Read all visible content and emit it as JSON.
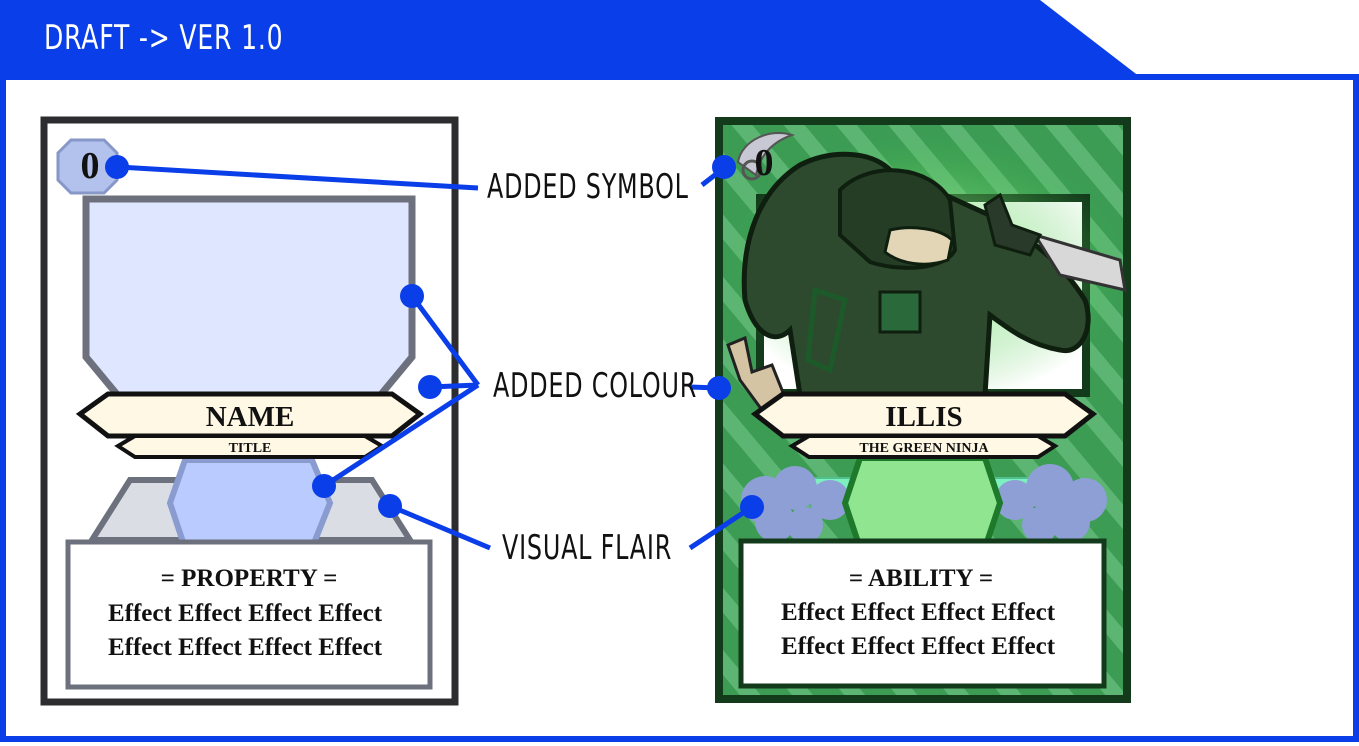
{
  "header": {
    "title": "DRAFT -> VER 1.0",
    "color": "#0a3ee8"
  },
  "callouts": {
    "symbol": "ADDED SYMBOL",
    "colour": "ADDED COLOUR",
    "flair": "VISUAL FLAIR"
  },
  "draft_card": {
    "cost": "0",
    "name": "NAME",
    "title": "TITLE",
    "text_heading": "= PROPERTY =",
    "effect_line_1": "Effect Effect Effect Effect",
    "effect_line_2": "Effect Effect Effect Effect"
  },
  "final_card": {
    "cost": "0",
    "name": "ILLIS",
    "title": "THE GREEN NINJA",
    "text_heading": "= ABILITY =",
    "effect_line_1": "Effect Effect Effect Effect",
    "effect_line_2": "Effect Effect Effect Effect"
  },
  "colors": {
    "accent": "#0a3ee8",
    "card_green": "#3a9a52",
    "card_border_dark": "#143a1c",
    "frame_light": "#dfe6ff",
    "name_banner": "#fff8e4"
  }
}
